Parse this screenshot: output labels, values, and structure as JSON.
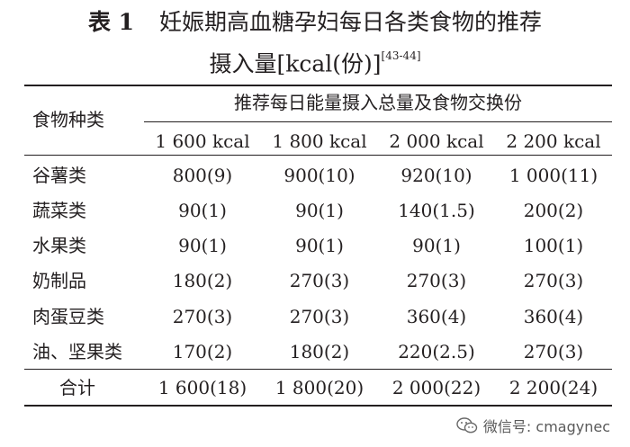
{
  "table": {
    "number": "表 1",
    "title": "妊娠期高血糖孕妇每日各类食物的推荐",
    "title2": "摄入量[kcal(份)]",
    "ref": "[43-44]",
    "header": {
      "row_label": "食物种类",
      "group_label": "推荐每日能量摄入总量及食物交换份",
      "columns": [
        "1 600 kcal",
        "1 800 kcal",
        "2 000 kcal",
        "2 200 kcal"
      ]
    },
    "rows": [
      {
        "name": "谷薯类",
        "values": [
          "800(9)",
          "900(10)",
          "920(10)",
          "1 000(11)"
        ]
      },
      {
        "name": "蔬菜类",
        "values": [
          "90(1)",
          "90(1)",
          "140(1.5)",
          "200(2)"
        ]
      },
      {
        "name": "水果类",
        "values": [
          "90(1)",
          "90(1)",
          "90(1)",
          "100(1)"
        ]
      },
      {
        "name": "奶制品",
        "values": [
          "180(2)",
          "270(3)",
          "270(3)",
          "270(3)"
        ]
      },
      {
        "name": "肉蛋豆类",
        "values": [
          "270(3)",
          "270(3)",
          "360(4)",
          "360(4)"
        ]
      },
      {
        "name": "油、坚果类",
        "values": [
          "170(2)",
          "180(2)",
          "220(2.5)",
          "270(3)"
        ]
      }
    ],
    "total": {
      "name": "合计",
      "values": [
        "1 600(18)",
        "1 800(20)",
        "2 000(22)",
        "2 200(24)"
      ]
    }
  },
  "watermark": {
    "text": "微信号: cmagynec",
    "icon": "wechat-icon"
  }
}
